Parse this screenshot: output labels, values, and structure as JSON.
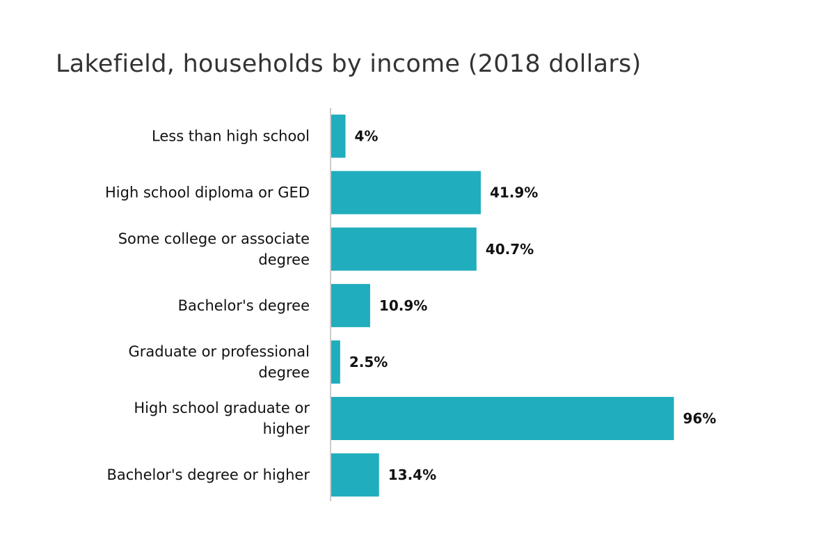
{
  "chart_data": {
    "type": "bar",
    "orientation": "horizontal",
    "title": "Lakefield, households by income (2018 dollars)",
    "xlabel": "",
    "ylabel": "",
    "categories": [
      "Less than high school",
      "High school diploma or GED",
      "Some college or associate degree",
      "Bachelor's degree",
      "Graduate or professional degree",
      "High school graduate or higher",
      "Bachelor's degree or higher"
    ],
    "values": [
      4,
      41.9,
      40.7,
      10.9,
      2.5,
      96,
      13.4
    ],
    "value_labels": [
      "4%",
      "41.9%",
      "40.7%",
      "10.9%",
      "2.5%",
      "96%",
      "13.4%"
    ],
    "xlim": [
      0,
      100
    ],
    "grid": false,
    "legend": "none",
    "bar_color": "#20adbd",
    "axis_color": "#cccccc"
  }
}
